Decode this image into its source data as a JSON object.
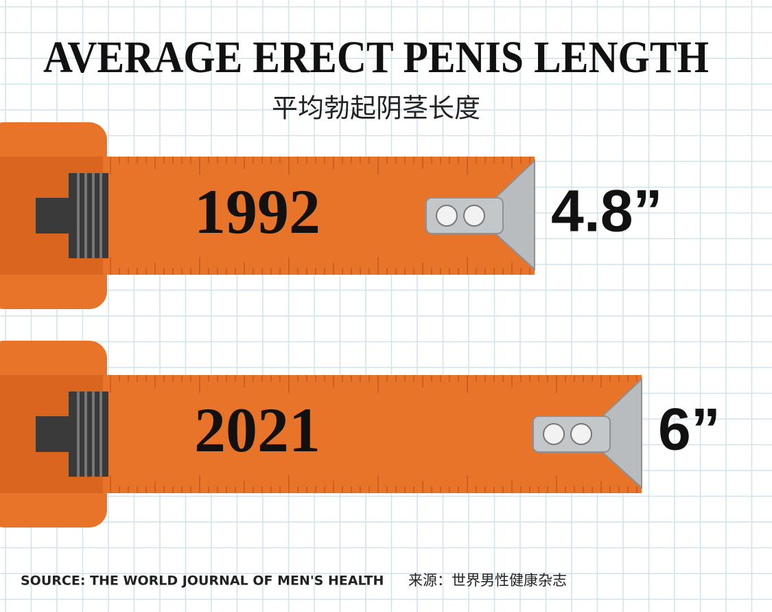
{
  "chart_data": {
    "type": "bar",
    "title": "AVERAGE ERECT PENIS LENGTH",
    "subtitle": "平均勃起阴茎长度",
    "categories": [
      "1992",
      "2021"
    ],
    "values": [
      4.8,
      6
    ],
    "value_labels": [
      "4.8”",
      "6”"
    ],
    "color": "#e8742a",
    "source": "SOURCE: THE WORLD JOURNAL OF MEN'S HEALTH",
    "source_cn": "来源：世界男性健康杂志"
  }
}
